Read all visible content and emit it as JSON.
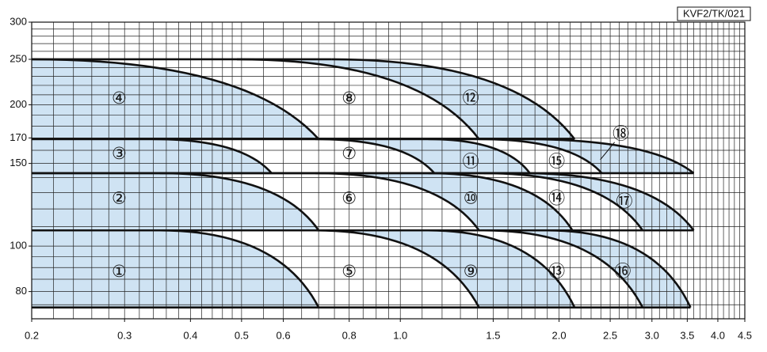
{
  "chart_data": {
    "type": "region-map",
    "code": "KVF2/TK/021",
    "log_x": true,
    "log_y": true,
    "xlim": [
      0.2,
      4.5
    ],
    "ylim": [
      70,
      300
    ],
    "xticks": [
      0.2,
      0.3,
      0.4,
      0.5,
      0.6,
      0.8,
      {
        "value": 1,
        "label": "1.0"
      },
      1.5,
      {
        "value": 2,
        "label": "2.0"
      },
      2.5,
      {
        "value": 3,
        "label": "3.0"
      },
      3.5,
      {
        "value": 4,
        "label": "4.0"
      },
      4.5
    ],
    "yticks": [
      80,
      100,
      150,
      170,
      200,
      250,
      300
    ],
    "xgrid": [
      0.22,
      0.24,
      0.26,
      0.28,
      0.3,
      0.32,
      0.34,
      0.36,
      0.38,
      0.4,
      0.42,
      0.44,
      0.46,
      0.48,
      0.5,
      0.55,
      0.6,
      0.65,
      0.7,
      0.75,
      0.8,
      0.85,
      0.9,
      0.95,
      1,
      1.1,
      1.2,
      1.3,
      1.4,
      1.5,
      1.6,
      1.7,
      1.8,
      1.9,
      2,
      2.1,
      2.2,
      2.3,
      2.4,
      2.5,
      2.6,
      2.7,
      2.8,
      2.9,
      3,
      3.1,
      3.2,
      3.3,
      3.4,
      3.5,
      3.6,
      3.7,
      3.8,
      3.9,
      4,
      4.1,
      4.2,
      4.3,
      4.4
    ],
    "ygrid": [
      75,
      80,
      85,
      90,
      95,
      100,
      110,
      120,
      130,
      140,
      150,
      160,
      170,
      180,
      190,
      200,
      210,
      220,
      230,
      240,
      250,
      260,
      270,
      280,
      290
    ],
    "fill_color": "#cfe3f3",
    "line_color": "#111111",
    "bands": [
      {
        "top": 250,
        "bottom": 169,
        "curves": [
          [
            0.2,
            0.7
          ],
          [
            0.49,
            1.41
          ],
          [
            0.74,
            2.14
          ]
        ]
      },
      {
        "top": 169,
        "bottom": 143,
        "curves": [
          [
            0.34,
            0.57
          ],
          [
            0.69,
            1.16
          ],
          [
            1.13,
            1.76
          ],
          [
            1.41,
            2.41
          ],
          [
            1.71,
            3.6
          ]
        ]
      },
      {
        "top": 143,
        "bottom": 108,
        "curves": [
          [
            0.35,
            0.7
          ],
          [
            0.69,
            1.41
          ],
          [
            1.13,
            2.12
          ],
          [
            1.44,
            2.88
          ],
          [
            1.71,
            3.6
          ]
        ]
      },
      {
        "top": 108,
        "bottom": 74,
        "curves": [
          [
            0.35,
            0.7
          ],
          [
            0.69,
            1.41
          ],
          [
            1.13,
            2.14
          ],
          [
            1.44,
            2.88
          ],
          [
            1.9,
            3.55
          ]
        ]
      }
    ],
    "labels": [
      {
        "text": "①",
        "q": 0.293,
        "h": 88
      },
      {
        "text": "②",
        "q": 0.293,
        "h": 126
      },
      {
        "text": "③",
        "q": 0.293,
        "h": 157
      },
      {
        "text": "④",
        "q": 0.293,
        "h": 206
      },
      {
        "text": "⑤",
        "q": 0.8,
        "h": 88
      },
      {
        "text": "⑥",
        "q": 0.8,
        "h": 126
      },
      {
        "text": "⑦",
        "q": 0.8,
        "h": 157
      },
      {
        "text": "⑧",
        "q": 0.8,
        "h": 206
      },
      {
        "text": "⑨",
        "q": 1.36,
        "h": 88
      },
      {
        "text": "⑩",
        "q": 1.36,
        "h": 126
      },
      {
        "text": "⑪",
        "q": 1.36,
        "h": 151
      },
      {
        "text": "⑫",
        "q": 1.36,
        "h": 206
      },
      {
        "text": "⑬",
        "q": 1.98,
        "h": 88
      },
      {
        "text": "⑭",
        "q": 1.98,
        "h": 126
      },
      {
        "text": "⑮",
        "q": 1.98,
        "h": 151
      },
      {
        "text": "⑯",
        "q": 2.64,
        "h": 88
      },
      {
        "text": "⑰",
        "q": 2.66,
        "h": 124
      },
      {
        "text": "⑱",
        "q": 2.62,
        "h": 173
      }
    ]
  }
}
